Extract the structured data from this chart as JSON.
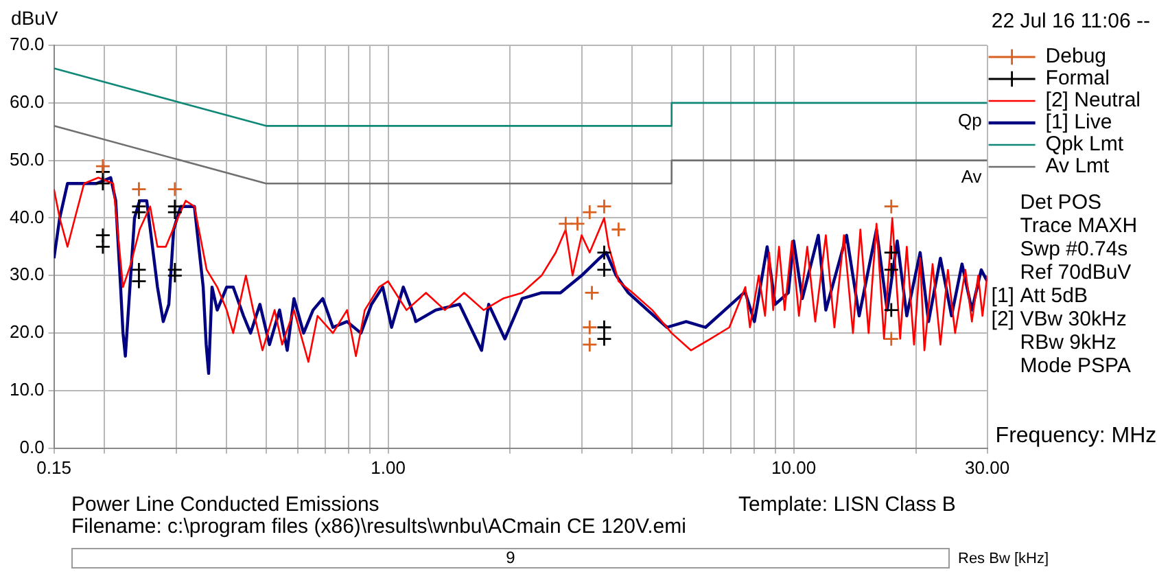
{
  "chart_data": {
    "type": "line",
    "ylabel": "dBuV",
    "xlabel": "Frequency: MHz",
    "log": "x",
    "grid": true,
    "legend": "top right",
    "xlim": [
      0.15,
      30
    ],
    "ylim": [
      0,
      70
    ],
    "xticks": [
      0.15,
      {
        "value": 0.2,
        "label": null
      },
      {
        "value": 0.3,
        "label": null
      },
      {
        "value": 0.4,
        "label": null
      },
      {
        "value": 0.5,
        "label": null
      },
      {
        "value": 0.6,
        "label": null
      },
      {
        "value": 0.7,
        "label": null
      },
      {
        "value": 0.8,
        "label": null
      },
      {
        "value": 0.9,
        "label": null
      },
      {
        "value": 1,
        "label": "1.00"
      },
      {
        "value": 2,
        "label": null
      },
      {
        "value": 3,
        "label": null
      },
      {
        "value": 4,
        "label": null
      },
      {
        "value": 5,
        "label": null
      },
      {
        "value": 6,
        "label": null
      },
      {
        "value": 7,
        "label": null
      },
      {
        "value": 8,
        "label": null
      },
      {
        "value": 9,
        "label": null
      },
      {
        "value": 10,
        "label": "10.00"
      },
      {
        "value": 20,
        "label": null
      },
      {
        "value": 30,
        "label": "30.00"
      }
    ],
    "yticks": [
      {
        "value": 0,
        "label": "0.0"
      },
      {
        "value": 10,
        "label": "10.0"
      },
      {
        "value": 20,
        "label": "20.0"
      },
      {
        "value": 30,
        "label": "30.0"
      },
      {
        "value": 40,
        "label": "40.0"
      },
      {
        "value": 50,
        "label": "50.0"
      },
      {
        "value": 60,
        "label": "60.0"
      },
      {
        "value": 70,
        "label": "70.0"
      }
    ],
    "series": [
      {
        "name": "[1] Live",
        "color": "#000080",
        "marker": "none",
        "x": [
          0.15,
          0.155,
          0.162,
          0.191,
          0.207,
          0.213,
          0.219,
          0.222,
          0.225,
          0.237,
          0.244,
          0.254,
          0.27,
          0.279,
          0.288,
          0.296,
          0.308,
          0.333,
          0.35,
          0.356,
          0.361,
          0.368,
          0.379,
          0.4,
          0.415,
          0.44,
          0.458,
          0.483,
          0.51,
          0.54,
          0.564,
          0.586,
          0.619,
          0.653,
          0.69,
          0.731,
          0.792,
          0.857,
          0.91,
          0.97,
          1.02,
          1.09,
          1.16,
          1.17,
          1.31,
          1.5,
          1.7,
          1.77,
          1.94,
          2.14,
          2.39,
          2.66,
          3.0,
          3.32,
          3.45,
          3.65,
          3.91,
          4.36,
          4.87,
          5.43,
          6.06,
          6.76,
          7.54,
          7.6,
          8.0,
          8.6,
          9.0,
          9.7,
          10.0,
          10.5,
          11.5,
          12.0,
          13.5,
          14.5,
          16.0,
          17.0,
          18.0,
          19.0,
          20.5,
          21.5,
          23.0,
          24.5,
          26.0,
          27.5,
          29.0,
          30.0
        ],
        "values": [
          33,
          40,
          46,
          46,
          47,
          43,
          28,
          20,
          16,
          40,
          43,
          43,
          28,
          22,
          25,
          38,
          42,
          42,
          28,
          18,
          13,
          28,
          24,
          28,
          28,
          23,
          20,
          25,
          18,
          24,
          17,
          26,
          20,
          24,
          26,
          21,
          22,
          20,
          25,
          28,
          21,
          28,
          23,
          22,
          24,
          25,
          17,
          25,
          19,
          26,
          27,
          27,
          30,
          33,
          34,
          30,
          27,
          24,
          21,
          22,
          21,
          24,
          27,
          27,
          22,
          35,
          25,
          27,
          36,
          26,
          37,
          24,
          37,
          23,
          38,
          24,
          36,
          23,
          34,
          22,
          33,
          23,
          32,
          24,
          31,
          29
        ]
      },
      {
        "name": "[2] Neutral",
        "color": "#ff0000",
        "marker": "none",
        "x": [
          0.15,
          0.155,
          0.162,
          0.169,
          0.178,
          0.193,
          0.21,
          0.222,
          0.232,
          0.244,
          0.259,
          0.27,
          0.283,
          0.303,
          0.317,
          0.333,
          0.357,
          0.379,
          0.4,
          0.415,
          0.446,
          0.465,
          0.49,
          0.525,
          0.548,
          0.586,
          0.636,
          0.67,
          0.731,
          0.792,
          0.833,
          0.876,
          0.95,
          1.0,
          1.11,
          1.24,
          1.38,
          1.54,
          1.72,
          1.92,
          2.14,
          2.39,
          2.59,
          2.74,
          2.85,
          3.0,
          3.14,
          3.41,
          3.5,
          3.7,
          4.01,
          4.48,
          5.0,
          5.58,
          6.23,
          6.94,
          7.6,
          7.8,
          8.2,
          8.5,
          8.7,
          8.9,
          9.2,
          9.5,
          9.9,
          10.3,
          10.8,
          11.3,
          12.0,
          12.6,
          13.3,
          14.0,
          14.6,
          15.3,
          16.0,
          16.7,
          17.5,
          18.3,
          19.0,
          19.8,
          20.5,
          21.0,
          22.0,
          23.0,
          24.0,
          25.0,
          26.5,
          27.5,
          28.5,
          29.2,
          30.0
        ],
        "values": [
          45,
          40,
          35,
          40,
          46,
          47,
          46,
          28,
          32,
          38,
          42,
          35,
          35,
          40,
          43,
          42,
          31,
          28,
          24,
          20,
          30,
          24,
          17,
          24,
          18,
          24,
          15,
          23,
          20,
          24,
          16,
          24,
          28,
          29,
          24,
          27,
          24,
          27,
          24,
          26,
          27,
          30,
          34,
          38,
          30,
          37,
          34,
          40,
          35,
          29,
          27,
          24,
          20,
          17,
          19,
          21,
          28,
          21,
          30,
          23,
          34,
          24,
          35,
          24,
          36,
          23,
          35,
          22,
          37,
          21,
          37,
          20,
          38,
          20,
          39,
          19,
          40,
          19,
          35,
          18,
          33,
          17,
          32,
          18,
          31,
          20,
          31,
          22,
          30,
          23,
          30
        ]
      },
      {
        "name": "Qpk Lmt",
        "color": "#108878",
        "marker": "none",
        "x": [
          0.15,
          0.5,
          5,
          5,
          30
        ],
        "values": [
          66,
          56,
          56,
          60,
          60
        ]
      },
      {
        "name": "Av Lmt",
        "color": "#707070",
        "marker": "none",
        "x": [
          0.15,
          0.5,
          5,
          5,
          30
        ],
        "values": [
          56,
          46,
          46,
          50,
          50
        ]
      },
      {
        "name": "Debug",
        "type": "scatter",
        "color": "#d86020",
        "marker": "cross",
        "x": [
          0.198,
          0.243,
          0.298,
          2.74,
          2.93,
          3.14,
          3.41,
          3.7,
          3.18,
          3.14,
          3.14,
          17.4,
          17.4
        ],
        "values": [
          49,
          45,
          45,
          39,
          39,
          41,
          42,
          38,
          27,
          21,
          18,
          42,
          19
        ]
      },
      {
        "name": "Formal",
        "type": "scatter",
        "color": "#000000",
        "marker": "cross",
        "x": [
          0.198,
          0.198,
          0.198,
          0.198,
          0.243,
          0.243,
          0.243,
          0.243,
          0.298,
          0.298,
          0.298,
          0.298,
          3.41,
          3.41,
          3.41,
          3.41,
          17.4,
          17.4,
          17.4
        ],
        "values": [
          48,
          46,
          37,
          35,
          42,
          41,
          31,
          29,
          42,
          41,
          31,
          30,
          34,
          31,
          21,
          19,
          34,
          31,
          24
        ]
      }
    ],
    "annotations": [
      "22 Jul 16 11:06 --",
      "Qp",
      "Av",
      "Det POS",
      "Trace MAXH",
      "Swp #0.74s",
      "Ref 70dBuV",
      "[1]",
      "Att 5dB",
      "[2]",
      "VBw 30kHz",
      "RBw 9kHz",
      "Mode PSPA",
      "Power Line Conducted Emissions",
      "Template: LISN Class B",
      "Filename: c:\\program files (x86)\\results\\wnbu\\ACmain CE 120V.emi",
      "9",
      "Res Bw [kHz]"
    ]
  }
}
